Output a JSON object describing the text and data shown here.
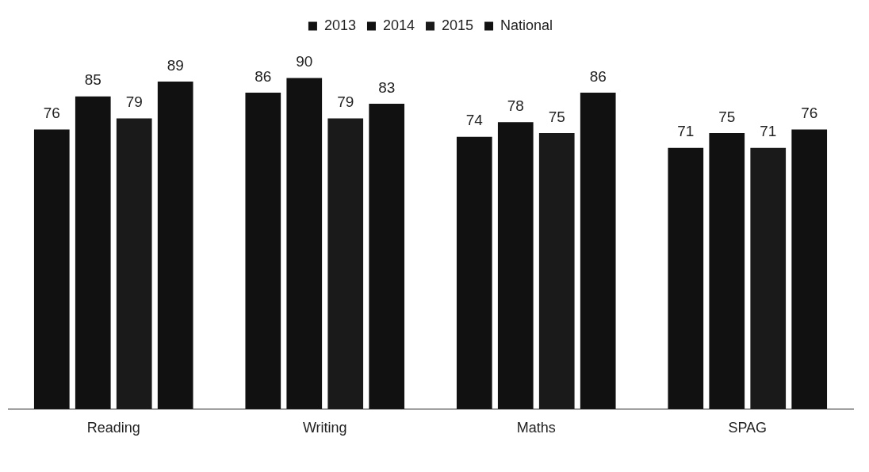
{
  "chart_data": {
    "type": "bar",
    "categories": [
      "Reading",
      "Writing",
      "Maths",
      "SPAG"
    ],
    "series": [
      {
        "name": "2013",
        "color": "#111111",
        "values": [
          76,
          86,
          74,
          71
        ]
      },
      {
        "name": "2014",
        "color": "#111111",
        "values": [
          85,
          90,
          78,
          75
        ]
      },
      {
        "name": "2015",
        "color": "#1a1a1a",
        "values": [
          79,
          79,
          75,
          71
        ]
      },
      {
        "name": "National",
        "color": "#111111",
        "values": [
          89,
          83,
          86,
          76
        ]
      }
    ],
    "data_labels": true,
    "legend": "top"
  }
}
